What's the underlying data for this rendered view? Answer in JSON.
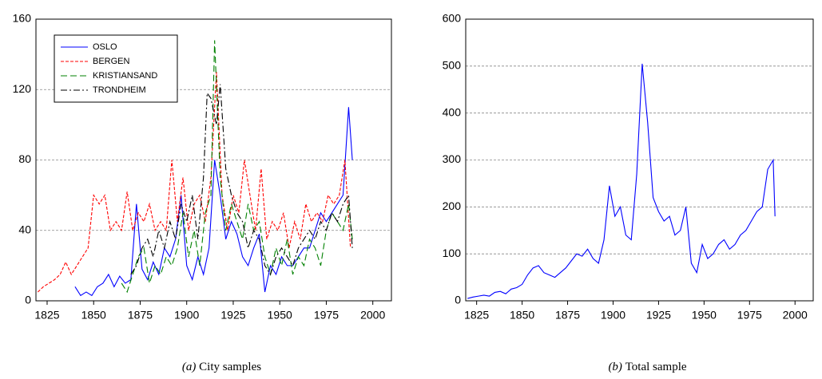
{
  "chart_data": [
    {
      "type": "line",
      "caption_label": "(a)",
      "caption": "City samples",
      "xlim": [
        1819,
        2010
      ],
      "xticks": [
        1825,
        1850,
        1875,
        1900,
        1925,
        1950,
        1975,
        2000
      ],
      "ylim": [
        0,
        160
      ],
      "yticks": [
        0,
        40,
        80,
        120,
        160
      ],
      "grid": true,
      "legend": "upper left",
      "series": [
        {
          "name": "OSLO",
          "color": "#0000ff",
          "style": "solid",
          "x": [
            1840,
            1843,
            1846,
            1849,
            1852,
            1855,
            1858,
            1861,
            1864,
            1867,
            1870,
            1873,
            1876,
            1879,
            1882,
            1885,
            1888,
            1891,
            1894,
            1897,
            1900,
            1903,
            1906,
            1909,
            1912,
            1915,
            1918,
            1921,
            1924,
            1927,
            1930,
            1933,
            1936,
            1939,
            1942,
            1945,
            1948,
            1951,
            1954,
            1957,
            1960,
            1963,
            1966,
            1969,
            1972,
            1975,
            1978,
            1981,
            1984,
            1987,
            1989
          ],
          "values": [
            8,
            3,
            5,
            3,
            8,
            10,
            15,
            8,
            14,
            10,
            12,
            55,
            18,
            12,
            22,
            15,
            30,
            25,
            35,
            60,
            20,
            12,
            25,
            15,
            30,
            80,
            60,
            35,
            45,
            38,
            25,
            20,
            30,
            38,
            5,
            20,
            15,
            25,
            20,
            20,
            25,
            30,
            30,
            40,
            50,
            45,
            50,
            55,
            60,
            110,
            80
          ]
        },
        {
          "name": "BERGEN",
          "color": "#ff0000",
          "style": "dashed",
          "x": [
            1820,
            1823,
            1826,
            1829,
            1832,
            1835,
            1838,
            1841,
            1844,
            1847,
            1850,
            1853,
            1856,
            1859,
            1862,
            1865,
            1868,
            1871,
            1874,
            1877,
            1880,
            1883,
            1886,
            1889,
            1892,
            1895,
            1898,
            1901,
            1904,
            1907,
            1910,
            1913,
            1916,
            1919,
            1922,
            1925,
            1928,
            1931,
            1934,
            1937,
            1940,
            1943,
            1946,
            1949,
            1952,
            1955,
            1958,
            1961,
            1964,
            1967,
            1970,
            1973,
            1976,
            1979,
            1982,
            1985,
            1988
          ],
          "values": [
            5,
            8,
            10,
            12,
            15,
            22,
            15,
            20,
            25,
            30,
            60,
            55,
            60,
            40,
            45,
            40,
            62,
            40,
            50,
            45,
            55,
            40,
            45,
            40,
            80,
            45,
            70,
            40,
            55,
            60,
            45,
            70,
            130,
            60,
            40,
            60,
            50,
            80,
            60,
            40,
            75,
            35,
            45,
            40,
            50,
            30,
            45,
            35,
            55,
            45,
            50,
            45,
            60,
            55,
            60,
            80,
            30
          ]
        },
        {
          "name": "KRISTIANSAND",
          "color": "#008000",
          "style": "longdash",
          "x": [
            1865,
            1868,
            1871,
            1874,
            1877,
            1880,
            1883,
            1886,
            1889,
            1892,
            1895,
            1898,
            1901,
            1904,
            1907,
            1910,
            1913,
            1915,
            1918,
            1921,
            1924,
            1927,
            1930,
            1933,
            1936,
            1939,
            1942,
            1945,
            1948,
            1951,
            1954,
            1957,
            1960,
            1963,
            1966,
            1969,
            1972,
            1975,
            1978,
            1981,
            1984,
            1987,
            1989
          ],
          "values": [
            10,
            5,
            15,
            25,
            30,
            10,
            20,
            15,
            25,
            20,
            30,
            50,
            25,
            40,
            20,
            50,
            60,
            148,
            70,
            40,
            55,
            45,
            35,
            55,
            40,
            45,
            25,
            15,
            30,
            20,
            35,
            15,
            25,
            20,
            35,
            30,
            20,
            40,
            50,
            45,
            40,
            55,
            35
          ]
        },
        {
          "name": "TRONDHEIM",
          "color": "#000000",
          "style": "dashdot",
          "x": [
            1870,
            1873,
            1876,
            1879,
            1882,
            1885,
            1888,
            1891,
            1894,
            1897,
            1900,
            1903,
            1906,
            1909,
            1911,
            1913,
            1916,
            1918,
            1921,
            1924,
            1927,
            1930,
            1933,
            1936,
            1939,
            1942,
            1945,
            1948,
            1951,
            1954,
            1957,
            1960,
            1963,
            1966,
            1969,
            1972,
            1975,
            1978,
            1981,
            1984,
            1987,
            1989
          ],
          "values": [
            15,
            20,
            30,
            35,
            25,
            40,
            30,
            45,
            35,
            55,
            45,
            60,
            35,
            70,
            118,
            115,
            100,
            123,
            75,
            60,
            50,
            45,
            30,
            40,
            35,
            20,
            15,
            25,
            30,
            25,
            20,
            30,
            35,
            40,
            35,
            45,
            40,
            50,
            45,
            55,
            60,
            30
          ]
        }
      ]
    },
    {
      "type": "line",
      "caption_label": "(b)",
      "caption": "Total sample",
      "xlim": [
        1819,
        2010
      ],
      "xticks": [
        1825,
        1850,
        1875,
        1900,
        1925,
        1950,
        1975,
        2000
      ],
      "ylim": [
        0,
        600
      ],
      "yticks": [
        0,
        100,
        200,
        300,
        400,
        500,
        600
      ],
      "grid": true,
      "series": [
        {
          "color": "#0000ff",
          "style": "solid",
          "x": [
            1820,
            1823,
            1826,
            1829,
            1832,
            1835,
            1838,
            1841,
            1844,
            1847,
            1850,
            1853,
            1856,
            1859,
            1862,
            1865,
            1868,
            1871,
            1874,
            1877,
            1880,
            1883,
            1886,
            1889,
            1892,
            1895,
            1898,
            1901,
            1904,
            1907,
            1910,
            1913,
            1916,
            1919,
            1922,
            1925,
            1928,
            1931,
            1934,
            1937,
            1940,
            1943,
            1946,
            1949,
            1952,
            1955,
            1958,
            1961,
            1964,
            1967,
            1970,
            1973,
            1976,
            1979,
            1982,
            1985,
            1988,
            1989
          ],
          "values": [
            5,
            8,
            10,
            12,
            10,
            18,
            20,
            15,
            25,
            28,
            35,
            55,
            70,
            75,
            60,
            55,
            50,
            60,
            70,
            85,
            100,
            95,
            110,
            90,
            80,
            130,
            245,
            180,
            200,
            140,
            130,
            270,
            505,
            380,
            220,
            190,
            170,
            180,
            140,
            150,
            200,
            80,
            60,
            120,
            90,
            100,
            120,
            130,
            110,
            120,
            140,
            150,
            170,
            190,
            200,
            280,
            300,
            180
          ]
        }
      ]
    }
  ]
}
